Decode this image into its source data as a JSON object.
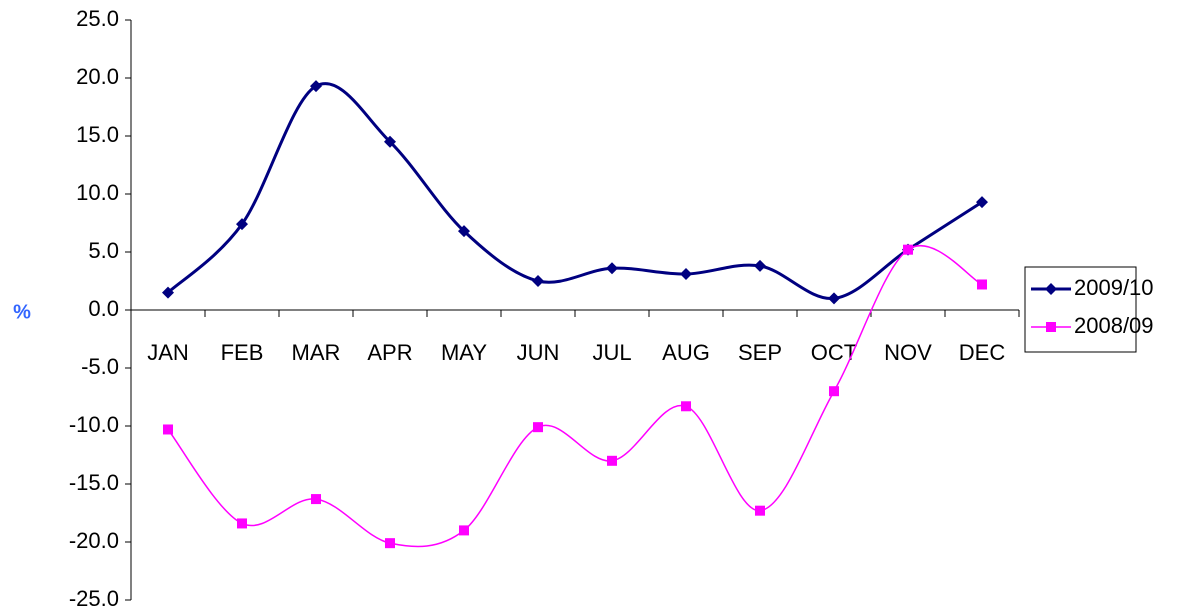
{
  "chart_data": {
    "type": "line",
    "y_label": "%",
    "categories": [
      "JAN",
      "FEB",
      "MAR",
      "APR",
      "MAY",
      "JUN",
      "JUL",
      "AUG",
      "SEP",
      "OCT",
      "NOV",
      "DEC"
    ],
    "series": [
      {
        "name": "2009/10",
        "color": "#000080",
        "marker": "diamond",
        "values": [
          1.5,
          7.4,
          19.3,
          14.5,
          6.8,
          2.5,
          3.6,
          3.1,
          3.8,
          1.0,
          5.2,
          9.3
        ]
      },
      {
        "name": "2008/09",
        "color": "#ff00ff",
        "marker": "square",
        "values": [
          -10.3,
          -18.4,
          -16.3,
          -20.1,
          -19.0,
          -10.1,
          -13.0,
          -8.3,
          -17.3,
          -7.0,
          5.2,
          2.2
        ]
      }
    ],
    "ylim": [
      -25,
      25
    ],
    "yticks": [
      {
        "value": -25,
        "label": "-25.0"
      },
      {
        "value": -20,
        "label": "-20.0"
      },
      {
        "value": -15,
        "label": "-15.0"
      },
      {
        "value": -10,
        "label": "-10.0"
      },
      {
        "value": -5,
        "label": "-5.0"
      },
      {
        "value": 0,
        "label": "0.0"
      },
      {
        "value": 5,
        "label": "5.0"
      },
      {
        "value": 10,
        "label": "10.0"
      },
      {
        "value": 15,
        "label": "15.0"
      },
      {
        "value": 20,
        "label": "20.0"
      },
      {
        "value": 25,
        "label": "25.0"
      }
    ],
    "smooth": true,
    "grid": false,
    "legend": "right"
  }
}
